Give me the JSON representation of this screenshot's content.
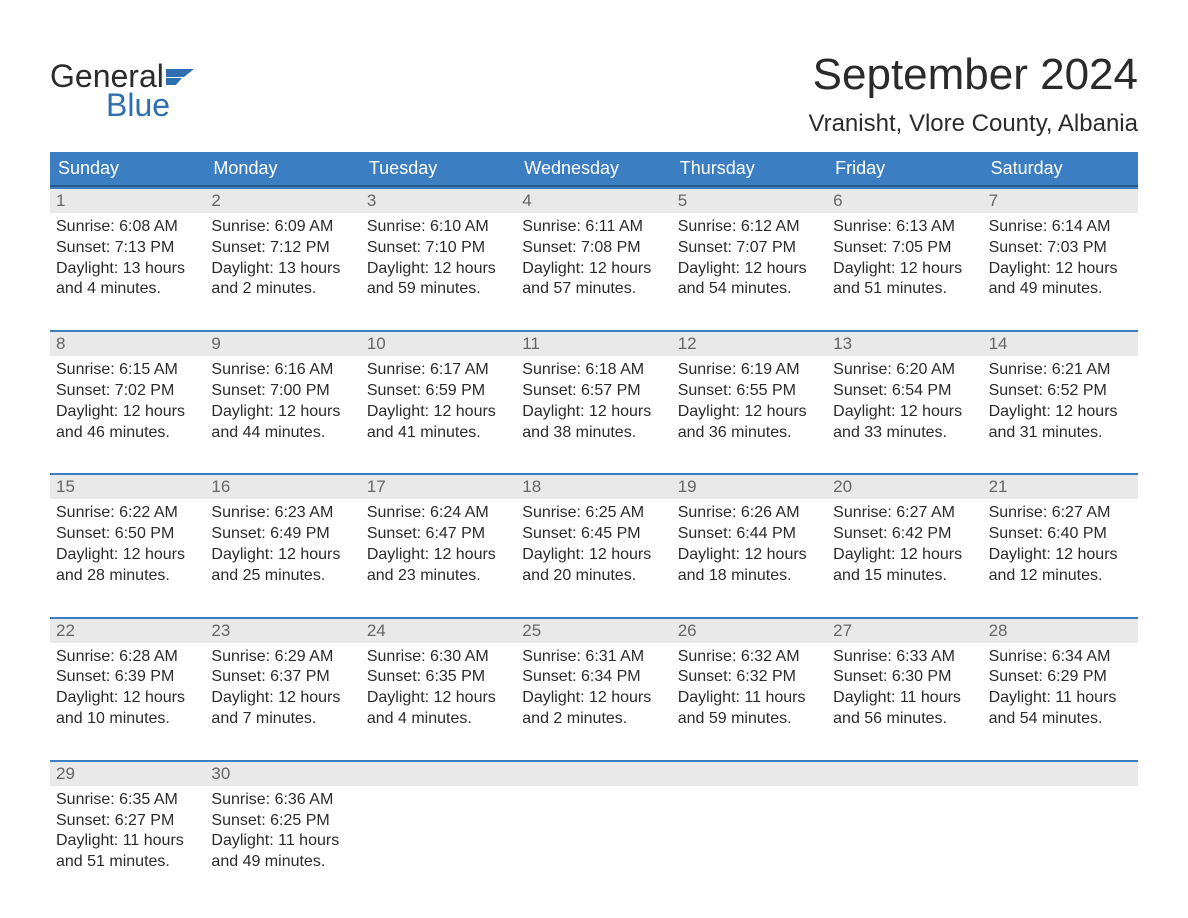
{
  "logo": {
    "top": "General",
    "bottom": "Blue",
    "flag_color": "#2f6fb0",
    "text_color": "#2b2b2b"
  },
  "header": {
    "month_title": "September 2024",
    "location": "Vranisht, Vlore County, Albania"
  },
  "weekdays": [
    "Sunday",
    "Monday",
    "Tuesday",
    "Wednesday",
    "Thursday",
    "Friday",
    "Saturday"
  ],
  "style": {
    "header_bg": "#3c7ec2",
    "header_border": "#2a5a8c",
    "week_border": "#3c7ec2",
    "daynum_bg": "#e9e9e9",
    "daynum_color": "#666666",
    "body_text": "#2b2b2b",
    "page_bg": "#ffffff",
    "weekday_fontsize": 18,
    "title_fontsize": 44,
    "location_fontsize": 24,
    "cell_fontsize": 16
  },
  "weeks": [
    [
      {
        "n": "1",
        "sunrise": "6:08 AM",
        "sunset": "7:13 PM",
        "dlh": "13",
        "dlm": "4"
      },
      {
        "n": "2",
        "sunrise": "6:09 AM",
        "sunset": "7:12 PM",
        "dlh": "13",
        "dlm": "2"
      },
      {
        "n": "3",
        "sunrise": "6:10 AM",
        "sunset": "7:10 PM",
        "dlh": "12",
        "dlm": "59"
      },
      {
        "n": "4",
        "sunrise": "6:11 AM",
        "sunset": "7:08 PM",
        "dlh": "12",
        "dlm": "57"
      },
      {
        "n": "5",
        "sunrise": "6:12 AM",
        "sunset": "7:07 PM",
        "dlh": "12",
        "dlm": "54"
      },
      {
        "n": "6",
        "sunrise": "6:13 AM",
        "sunset": "7:05 PM",
        "dlh": "12",
        "dlm": "51"
      },
      {
        "n": "7",
        "sunrise": "6:14 AM",
        "sunset": "7:03 PM",
        "dlh": "12",
        "dlm": "49"
      }
    ],
    [
      {
        "n": "8",
        "sunrise": "6:15 AM",
        "sunset": "7:02 PM",
        "dlh": "12",
        "dlm": "46"
      },
      {
        "n": "9",
        "sunrise": "6:16 AM",
        "sunset": "7:00 PM",
        "dlh": "12",
        "dlm": "44"
      },
      {
        "n": "10",
        "sunrise": "6:17 AM",
        "sunset": "6:59 PM",
        "dlh": "12",
        "dlm": "41"
      },
      {
        "n": "11",
        "sunrise": "6:18 AM",
        "sunset": "6:57 PM",
        "dlh": "12",
        "dlm": "38"
      },
      {
        "n": "12",
        "sunrise": "6:19 AM",
        "sunset": "6:55 PM",
        "dlh": "12",
        "dlm": "36"
      },
      {
        "n": "13",
        "sunrise": "6:20 AM",
        "sunset": "6:54 PM",
        "dlh": "12",
        "dlm": "33"
      },
      {
        "n": "14",
        "sunrise": "6:21 AM",
        "sunset": "6:52 PM",
        "dlh": "12",
        "dlm": "31"
      }
    ],
    [
      {
        "n": "15",
        "sunrise": "6:22 AM",
        "sunset": "6:50 PM",
        "dlh": "12",
        "dlm": "28"
      },
      {
        "n": "16",
        "sunrise": "6:23 AM",
        "sunset": "6:49 PM",
        "dlh": "12",
        "dlm": "25"
      },
      {
        "n": "17",
        "sunrise": "6:24 AM",
        "sunset": "6:47 PM",
        "dlh": "12",
        "dlm": "23"
      },
      {
        "n": "18",
        "sunrise": "6:25 AM",
        "sunset": "6:45 PM",
        "dlh": "12",
        "dlm": "20"
      },
      {
        "n": "19",
        "sunrise": "6:26 AM",
        "sunset": "6:44 PM",
        "dlh": "12",
        "dlm": "18"
      },
      {
        "n": "20",
        "sunrise": "6:27 AM",
        "sunset": "6:42 PM",
        "dlh": "12",
        "dlm": "15"
      },
      {
        "n": "21",
        "sunrise": "6:27 AM",
        "sunset": "6:40 PM",
        "dlh": "12",
        "dlm": "12"
      }
    ],
    [
      {
        "n": "22",
        "sunrise": "6:28 AM",
        "sunset": "6:39 PM",
        "dlh": "12",
        "dlm": "10"
      },
      {
        "n": "23",
        "sunrise": "6:29 AM",
        "sunset": "6:37 PM",
        "dlh": "12",
        "dlm": "7"
      },
      {
        "n": "24",
        "sunrise": "6:30 AM",
        "sunset": "6:35 PM",
        "dlh": "12",
        "dlm": "4"
      },
      {
        "n": "25",
        "sunrise": "6:31 AM",
        "sunset": "6:34 PM",
        "dlh": "12",
        "dlm": "2"
      },
      {
        "n": "26",
        "sunrise": "6:32 AM",
        "sunset": "6:32 PM",
        "dlh": "11",
        "dlm": "59"
      },
      {
        "n": "27",
        "sunrise": "6:33 AM",
        "sunset": "6:30 PM",
        "dlh": "11",
        "dlm": "56"
      },
      {
        "n": "28",
        "sunrise": "6:34 AM",
        "sunset": "6:29 PM",
        "dlh": "11",
        "dlm": "54"
      }
    ],
    [
      {
        "n": "29",
        "sunrise": "6:35 AM",
        "sunset": "6:27 PM",
        "dlh": "11",
        "dlm": "51"
      },
      {
        "n": "30",
        "sunrise": "6:36 AM",
        "sunset": "6:25 PM",
        "dlh": "11",
        "dlm": "49"
      },
      null,
      null,
      null,
      null,
      null
    ]
  ],
  "labels": {
    "sunrise_prefix": "Sunrise: ",
    "sunset_prefix": "Sunset: ",
    "daylight_prefix": "Daylight: ",
    "hours_word": " hours",
    "and_word": "and ",
    "minutes_word": " minutes."
  }
}
